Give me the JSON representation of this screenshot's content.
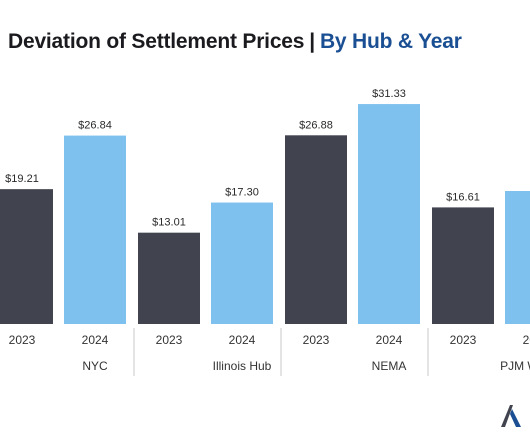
{
  "title": {
    "main": "Deviation of Settlement Prices",
    "separator": "|",
    "sub": "By Hub & Year"
  },
  "colors": {
    "year_2023": "#41444f",
    "year_2024": "#7ec1ee",
    "title_main": "#1b1b1f",
    "title_sub": "#1a4f93",
    "separator_lines": "#c9c9c9"
  },
  "chart_data": {
    "type": "bar",
    "title": "Deviation of Settlement Prices | By Hub & Year",
    "xlabel": "",
    "ylabel": "",
    "grid": false,
    "legend": "none",
    "ylim": [
      0,
      35
    ],
    "categories": [
      "NYC",
      "Illinois Hub",
      "NEMA",
      "PJM Western"
    ],
    "series": [
      {
        "year": "2023",
        "values": [
          19.21,
          13.01,
          26.88,
          16.61
        ],
        "labels": [
          "$19.21",
          "$13.01",
          "$26.88",
          "$16.61"
        ]
      },
      {
        "year": "2024",
        "values": [
          26.84,
          17.3,
          31.33,
          null
        ],
        "labels": [
          "$26.84",
          "$17.30",
          "$31.33",
          "$"
        ]
      }
    ]
  },
  "logo": {
    "icon": "mountain-a-logo-icon"
  }
}
